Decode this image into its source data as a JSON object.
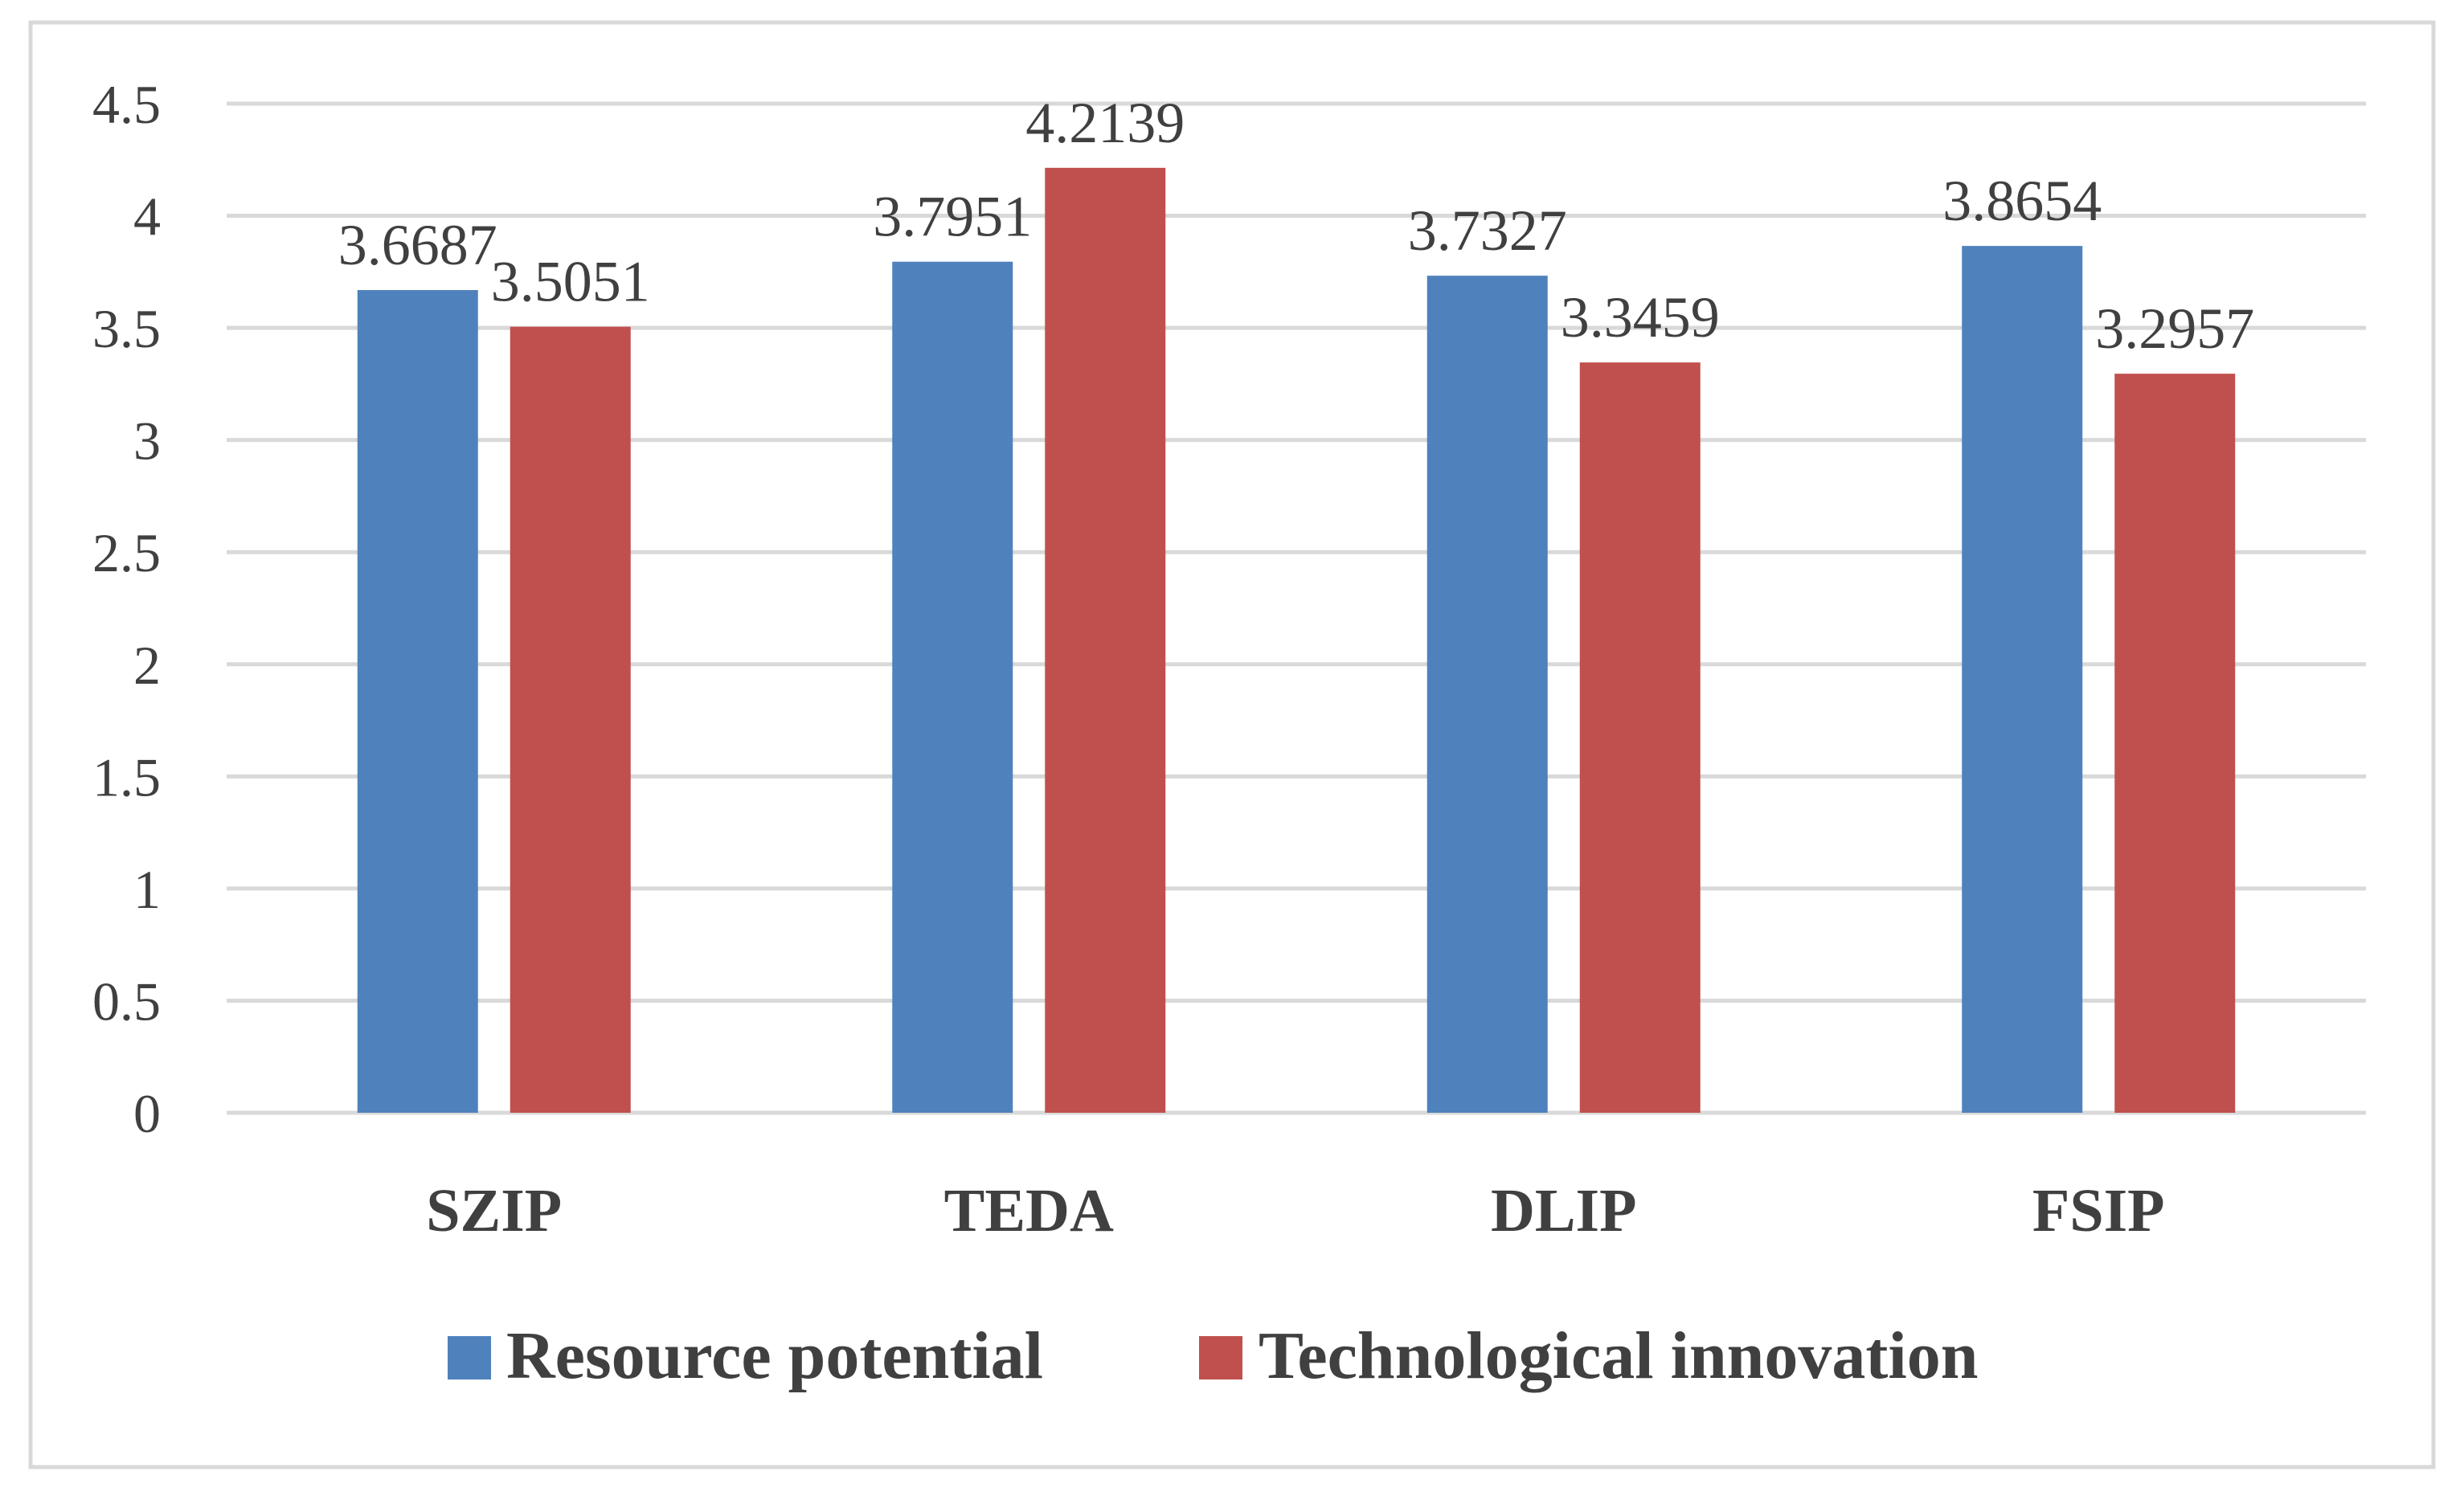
{
  "chart_data": {
    "type": "bar",
    "categories": [
      "SZIP",
      "TEDA",
      "DLIP",
      "FSIP"
    ],
    "series": [
      {
        "name": "Resource potential",
        "values": [
          3.6687,
          3.7951,
          3.7327,
          3.8654
        ],
        "labels": [
          "3.6687",
          "3.7951",
          "3.7327",
          "3.8654"
        ],
        "color": "#4f81bd"
      },
      {
        "name": "Technological innovation",
        "values": [
          3.5051,
          4.2139,
          3.3459,
          3.2957
        ],
        "labels": [
          "3.5051",
          "4.2139",
          "3.3459",
          "3.2957"
        ],
        "color": "#c0504d"
      }
    ],
    "y_ticks": [
      "0",
      "0.5",
      "1",
      "1.5",
      "2",
      "2.5",
      "3",
      "3.5",
      "4",
      "4.5"
    ],
    "ylim": [
      0,
      4.5
    ],
    "grid": true,
    "legend_position": "bottom",
    "gridline_color": "#d9d9d9",
    "frame_color": "#d9d9d9"
  }
}
